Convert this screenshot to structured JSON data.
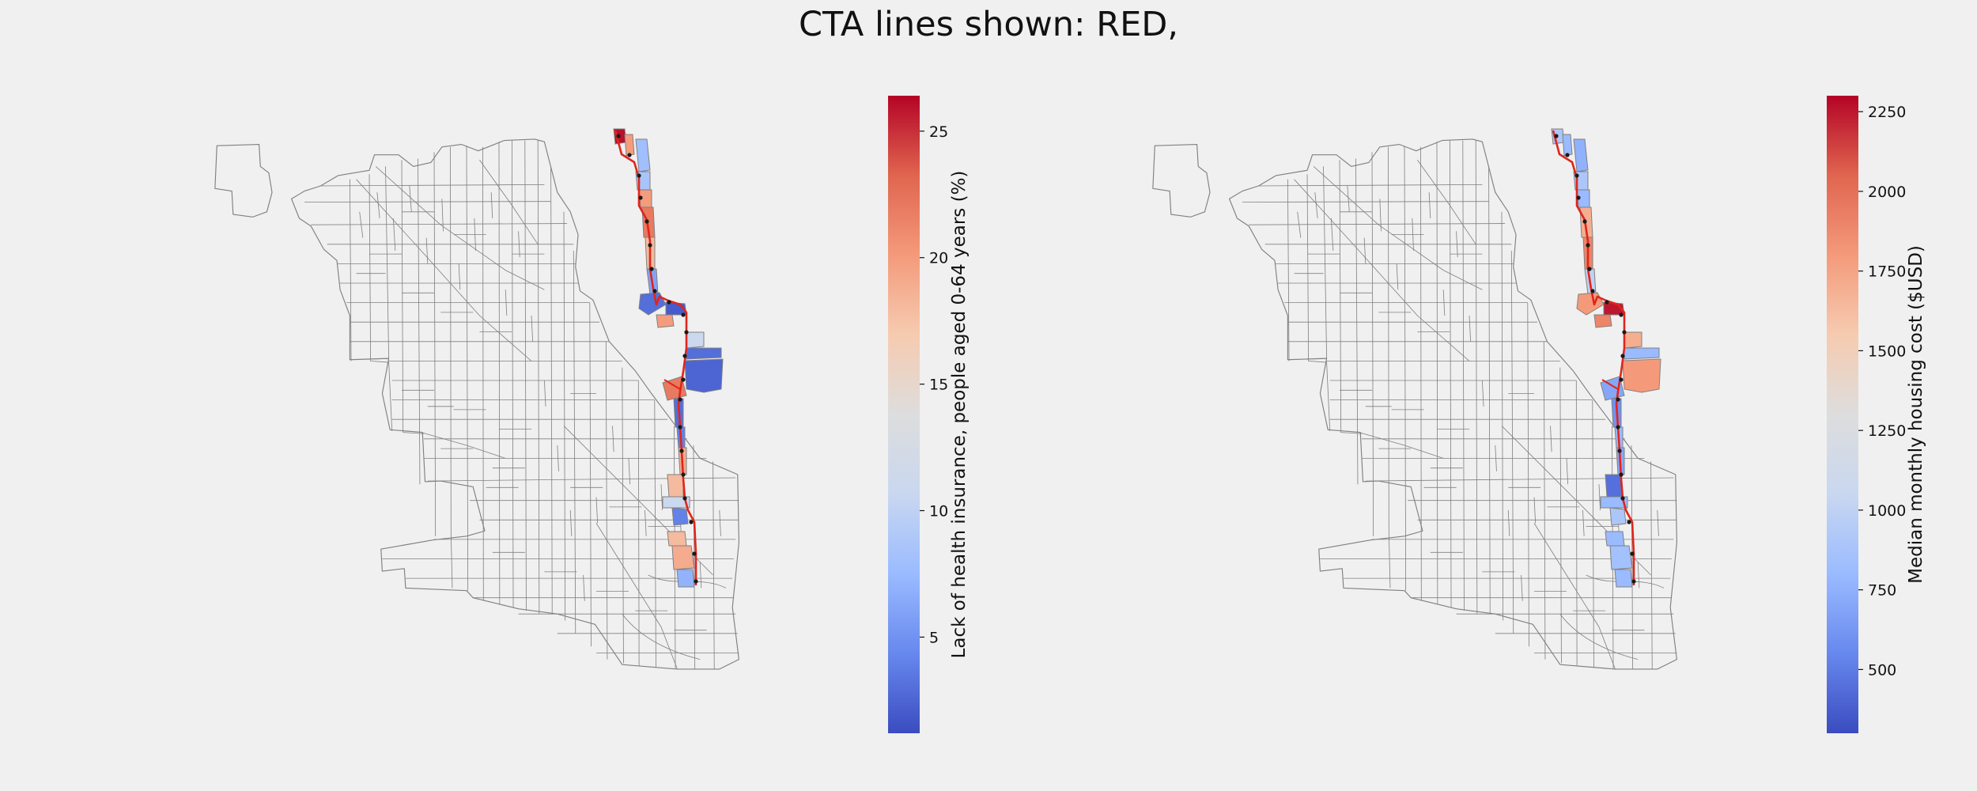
{
  "title": "CTA lines shown: RED,",
  "colors": {
    "background": "#f0f0f0",
    "tract_edge": "#808080",
    "tract_fill": "#f0f0f0",
    "line": "#e0251b",
    "station": "#1a1a1a",
    "colormap": [
      "#3b4cc0",
      "#6788ee",
      "#9abbff",
      "#c9d7f0",
      "#dddddd",
      "#f6cbb0",
      "#f49a7b",
      "#e0654f",
      "#b40426"
    ]
  },
  "maps": [
    {
      "id": "insurance",
      "colorbar": {
        "label": "Lack of health insurance, people aged 0-64 years (%)",
        "min": 1.2,
        "max": 26.4,
        "ticks": [
          "5",
          "10",
          "15",
          "20",
          "25"
        ],
        "tick_values": [
          5,
          10,
          15,
          20,
          25
        ]
      },
      "tracts": [
        {
          "value": 26
        },
        {
          "value": 20
        },
        {
          "value": 8
        },
        {
          "value": 8.5
        },
        {
          "value": 20
        },
        {
          "value": 22
        },
        {
          "value": 18
        },
        {
          "value": 6
        },
        {
          "value": 3
        },
        {
          "value": 2
        },
        {
          "value": 20
        },
        {
          "value": 11
        },
        {
          "value": 3
        },
        {
          "value": 2.5
        },
        {
          "value": 22
        },
        {
          "value": 3
        },
        {
          "value": 4
        },
        {
          "value": 19
        },
        {
          "value": 18
        },
        {
          "value": 11
        },
        {
          "value": 4
        },
        {
          "value": 18
        },
        {
          "value": 19
        },
        {
          "value": 7
        }
      ]
    },
    {
      "id": "housing",
      "colorbar": {
        "label": "Median monthly housing cost ($USD)",
        "min": 300,
        "max": 2300,
        "ticks": [
          "500",
          "750",
          "1000",
          "1250",
          "1500",
          "1750",
          "2000",
          "2250"
        ],
        "tick_values": [
          500,
          750,
          1000,
          1250,
          1500,
          1750,
          2000,
          2250
        ]
      },
      "tracts": [
        {
          "value": 900
        },
        {
          "value": 800
        },
        {
          "value": 750
        },
        {
          "value": 900
        },
        {
          "value": 800
        },
        {
          "value": 1700
        },
        {
          "value": 1900
        },
        {
          "value": 1000
        },
        {
          "value": 1800
        },
        {
          "value": 2250
        },
        {
          "value": 1900
        },
        {
          "value": 1700
        },
        {
          "value": 800
        },
        {
          "value": 1800
        },
        {
          "value": 700
        },
        {
          "value": 600
        },
        {
          "value": 800
        },
        {
          "value": 700
        },
        {
          "value": 450
        },
        {
          "value": 800
        },
        {
          "value": 900
        },
        {
          "value": 800
        },
        {
          "value": 850
        },
        {
          "value": 800
        }
      ]
    }
  ]
}
